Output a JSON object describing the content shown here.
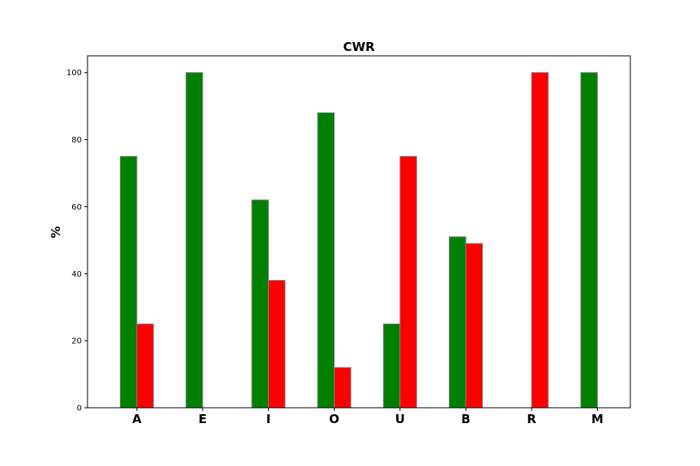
{
  "chart_data": {
    "type": "bar",
    "title": "CWR",
    "xlabel": "",
    "ylabel": "%",
    "categories": [
      "A",
      "E",
      "I",
      "O",
      "U",
      "B",
      "R",
      "M"
    ],
    "series": [
      {
        "name": "green",
        "color": "#008000",
        "values": [
          75,
          100,
          62,
          88,
          25,
          51,
          0,
          100
        ]
      },
      {
        "name": "red",
        "color": "#ff0000",
        "values": [
          25,
          0,
          38,
          12,
          75,
          49,
          100,
          0
        ]
      }
    ],
    "yticks": [
      0,
      20,
      40,
      60,
      80,
      100
    ],
    "ylim": [
      0,
      105
    ],
    "bar_edge_color": "#808080",
    "grid": false,
    "legend": "none"
  }
}
